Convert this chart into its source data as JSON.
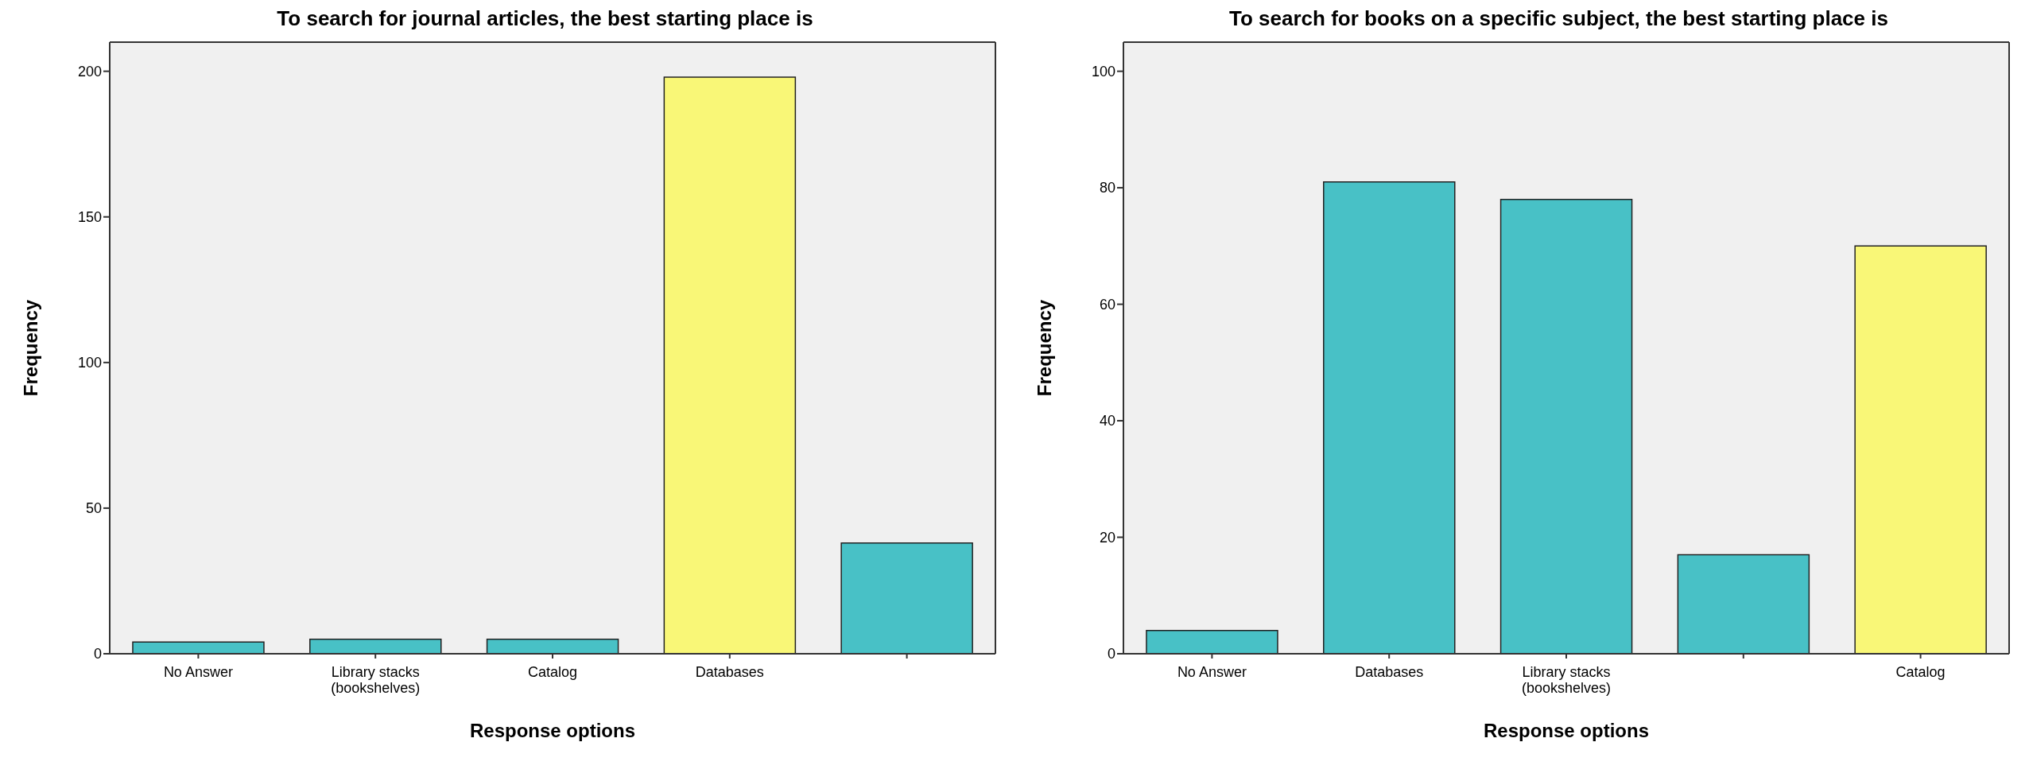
{
  "chart_data": [
    {
      "type": "bar",
      "title": "To search for journal articles, the best starting place is",
      "xlabel": "Response options",
      "ylabel": "Frequency",
      "categories": [
        "No Answer",
        "Library stacks (bookshelves)",
        "Catalog",
        "Databases",
        null
      ],
      "values": [
        4,
        5,
        5,
        198,
        38
      ],
      "colors": [
        "#48c1c6",
        "#48c1c6",
        "#48c1c6",
        "#f9f777",
        "#48c1c6"
      ],
      "ylim": [
        0,
        210
      ],
      "yticks": [
        0,
        50,
        100,
        150,
        200
      ],
      "grid": false
    },
    {
      "type": "bar",
      "title": "To search for books on a specific subject, the best starting place is",
      "xlabel": "Response options",
      "ylabel": "Frequency",
      "categories": [
        "No Answer",
        "Databases",
        "Library stacks (bookshelves)",
        null,
        "Catalog"
      ],
      "values": [
        4,
        81,
        78,
        17,
        70
      ],
      "colors": [
        "#48c1c6",
        "#48c1c6",
        "#48c1c6",
        "#48c1c6",
        "#f9f777"
      ],
      "ylim": [
        0,
        105
      ],
      "yticks": [
        0,
        20,
        40,
        60,
        80,
        100
      ],
      "grid": false
    }
  ]
}
